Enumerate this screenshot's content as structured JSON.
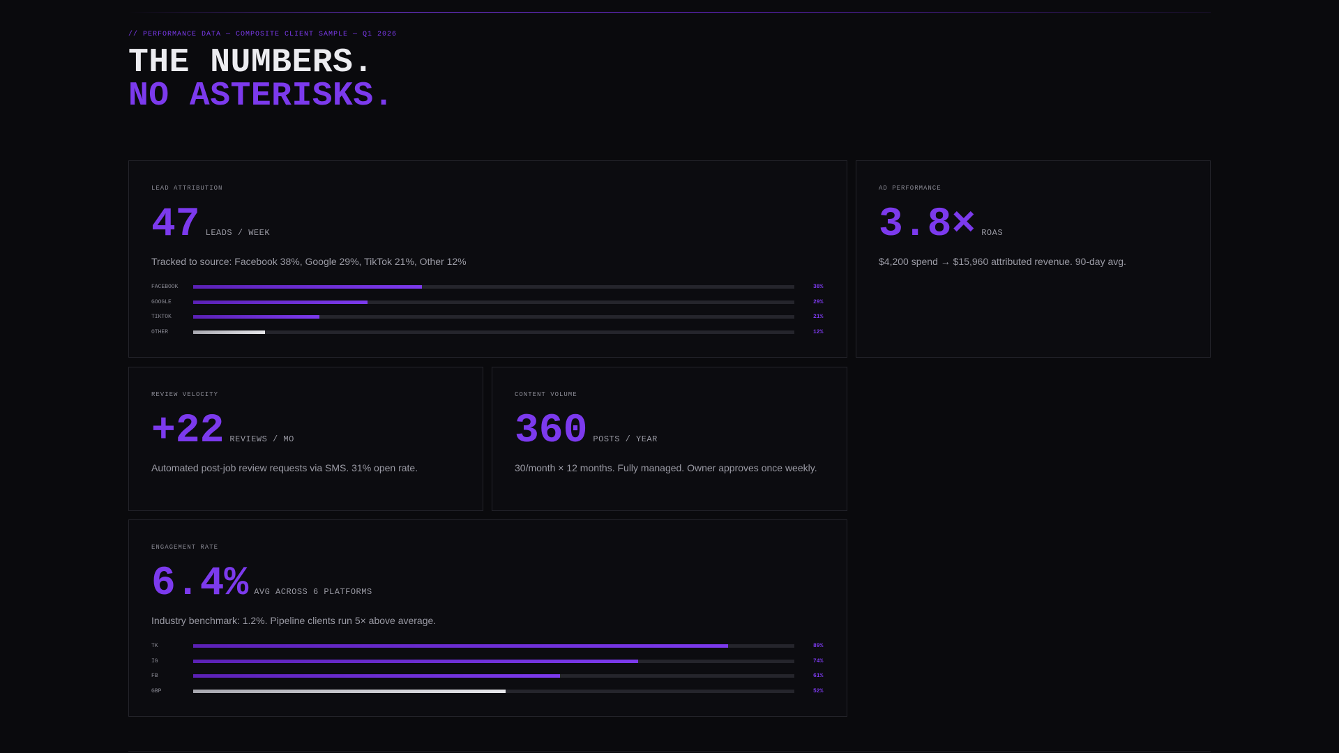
{
  "header": {
    "eyebrow": "// PERFORMANCE DATA — COMPOSITE CLIENT SAMPLE — Q1 2026",
    "title_line1": "THE NUMBERS.",
    "title_line2": "NO ASTERISKS."
  },
  "colors": {
    "accent": "#7c3aed",
    "background": "#0a0a0d",
    "card_border": "#24242b"
  },
  "cards": {
    "lead_attribution": {
      "label": "LEAD ATTRIBUTION",
      "value": "47",
      "unit": "LEADS / WEEK",
      "description": "Tracked to source: Facebook 38%, Google 29%, TikTok 21%, Other 12%",
      "bars": [
        {
          "name": "FACEBOOK",
          "value": 38,
          "pct_label": "38%",
          "style": "accent"
        },
        {
          "name": "GOOGLE",
          "value": 29,
          "pct_label": "29%",
          "style": "accent"
        },
        {
          "name": "TIKTOK",
          "value": 21,
          "pct_label": "21%",
          "style": "accent"
        },
        {
          "name": "OTHER",
          "value": 12,
          "pct_label": "12%",
          "style": "gray"
        }
      ]
    },
    "ad_performance": {
      "label": "AD PERFORMANCE",
      "value": "3.8×",
      "unit": "ROAS",
      "description": "$4,200 spend → $15,960 attributed revenue. 90-day avg."
    },
    "review_velocity": {
      "label": "REVIEW VELOCITY",
      "value": "+22",
      "unit": "REVIEWS / MO",
      "description": "Automated post-job review requests via SMS. 31% open rate."
    },
    "content_volume": {
      "label": "CONTENT VOLUME",
      "value": "360",
      "unit": "POSTS / YEAR",
      "description": "30/month × 12 months. Fully managed. Owner approves once weekly."
    },
    "engagement_rate": {
      "label": "ENGAGEMENT RATE",
      "value": "6.4%",
      "unit": "AVG ACROSS 6 PLATFORMS",
      "description": "Industry benchmark: 1.2%. Pipeline clients run 5× above average.",
      "bars": [
        {
          "name": "TK",
          "value": 89,
          "pct_label": "89%",
          "style": "accent"
        },
        {
          "name": "IG",
          "value": 74,
          "pct_label": "74%",
          "style": "accent"
        },
        {
          "name": "FB",
          "value": 61,
          "pct_label": "61%",
          "style": "accent"
        },
        {
          "name": "GBP",
          "value": 52,
          "pct_label": "52%",
          "style": "gray"
        }
      ]
    }
  }
}
